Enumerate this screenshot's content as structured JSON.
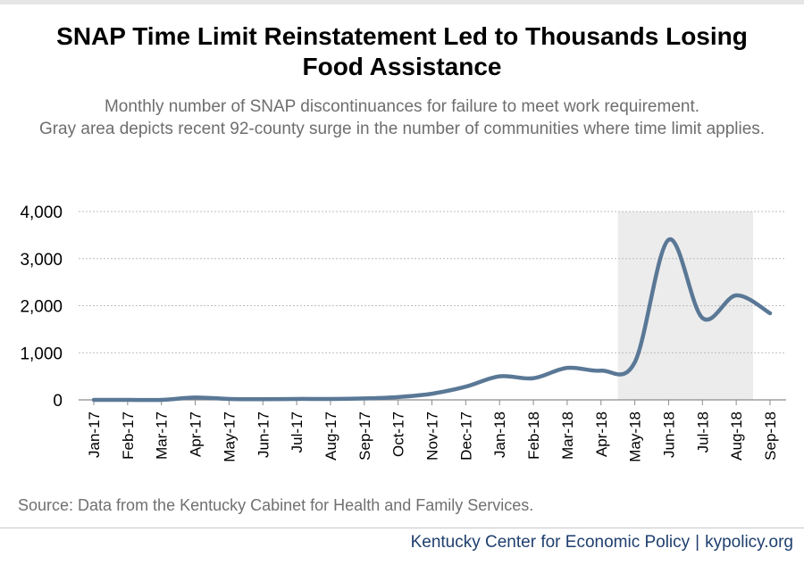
{
  "chart_data": {
    "type": "line",
    "title_lines": [
      "SNAP Time Limit Reinstatement Led to Thousands Losing",
      "Food Assistance"
    ],
    "subtitle_lines": [
      "Monthly number of SNAP discontinuances for failure to meet work requirement.",
      "Gray area depicts recent 92-county surge in the number of communities where time limit applies."
    ],
    "categories": [
      "Jan-17",
      "Feb-17",
      "Mar-17",
      "Apr-17",
      "May-17",
      "Jun-17",
      "Jul-17",
      "Aug-17",
      "Sep-17",
      "Oct-17",
      "Nov-17",
      "Dec-17",
      "Jan-18",
      "Feb-18",
      "Mar-18",
      "Apr-18",
      "May-18",
      "Jun-18",
      "Jul-18",
      "Aug-18",
      "Sep-18"
    ],
    "series": [
      {
        "values": [
          0,
          0,
          0,
          50,
          20,
          15,
          20,
          20,
          30,
          60,
          130,
          280,
          500,
          460,
          680,
          620,
          800,
          3400,
          1740,
          2220,
          1840
        ]
      }
    ],
    "ylim": [
      0,
      4000
    ],
    "yticks": [
      0,
      1000,
      2000,
      3000,
      4000
    ],
    "ytick_labels": [
      "0",
      "1,000",
      "2,000",
      "3,000",
      "4,000"
    ],
    "shaded_region": {
      "from_category": "May-18",
      "to_category": "Aug-18"
    },
    "grid": "horizontal dotted",
    "legend": "none",
    "line_color": "#5a7896",
    "shade_color": "#ececec"
  },
  "source_text": "Source: Data from the Kentucky Cabinet for Health and Family Services.",
  "footer": {
    "org": "Kentucky Center for Economic Policy",
    "separator": "|",
    "site": "kypolicy.org"
  }
}
